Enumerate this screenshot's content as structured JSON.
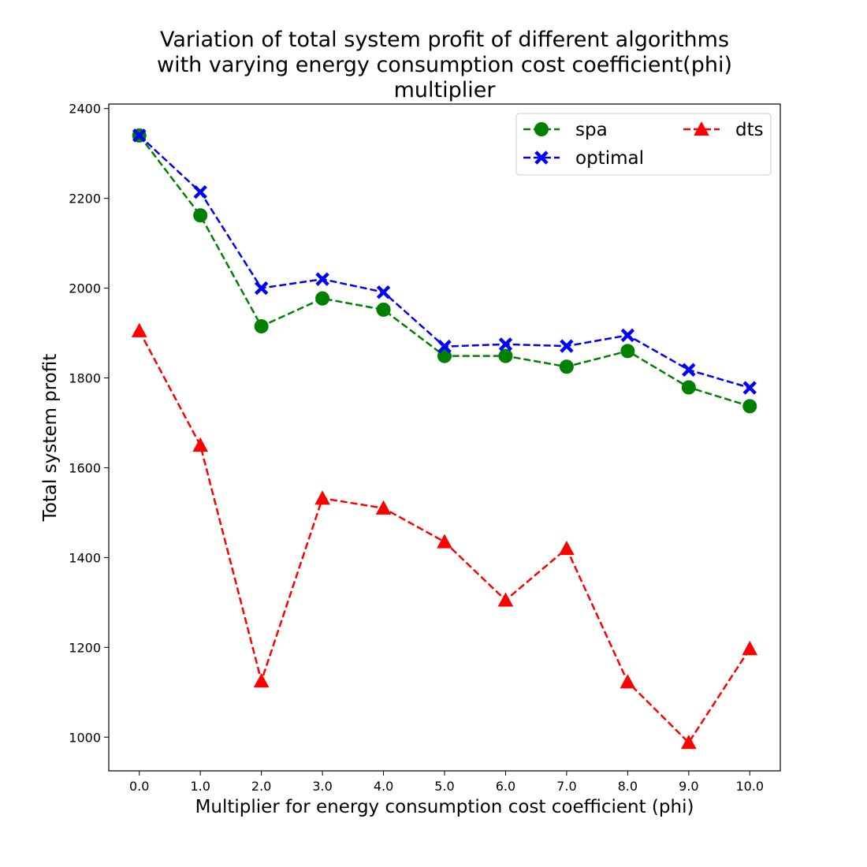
{
  "chart_data": {
    "type": "line",
    "title": [
      "Variation of total system profit of different algorithms",
      "with varying energy consumption cost coefficient(phi)",
      "multiplier"
    ],
    "xlabel": "Multiplier for energy consumption cost coefficient (phi)",
    "ylabel": "Total system profit",
    "x": [
      0,
      1,
      2,
      3,
      4,
      5,
      6,
      7,
      8,
      9,
      10
    ],
    "x_tick_labels": [
      "0.0",
      "1.0",
      "2.0",
      "3.0",
      "4.0",
      "5.0",
      "6.0",
      "7.0",
      "8.0",
      "9.0",
      "10.0"
    ],
    "y_ticks": [
      1000,
      1200,
      1400,
      1600,
      1800,
      2000,
      2200,
      2400
    ],
    "y_tick_labels": [
      "1000",
      "1200",
      "1400",
      "1600",
      "1800",
      "2000",
      "2200",
      "2400"
    ],
    "xlim": [
      -0.5,
      10.5
    ],
    "ylim": [
      925,
      2410
    ],
    "grid": false,
    "legend_position": "top-right",
    "series": [
      {
        "name": "spa",
        "color": "#008000",
        "marker": "circle",
        "values": [
          2340,
          2162,
          1915,
          1977,
          1952,
          1849,
          1849,
          1825,
          1860,
          1779,
          1737
        ]
      },
      {
        "name": "optimal",
        "color": "#0000ff",
        "marker": "x",
        "values": [
          2340,
          2214,
          2000,
          2020,
          1991,
          1870,
          1875,
          1871,
          1895,
          1818,
          1778
        ]
      },
      {
        "name": "dts",
        "color": "#ff0000",
        "marker": "triangle",
        "values": [
          1905,
          1650,
          1125,
          1532,
          1510,
          1435,
          1305,
          1420,
          1123,
          988,
          1197
        ]
      }
    ]
  }
}
